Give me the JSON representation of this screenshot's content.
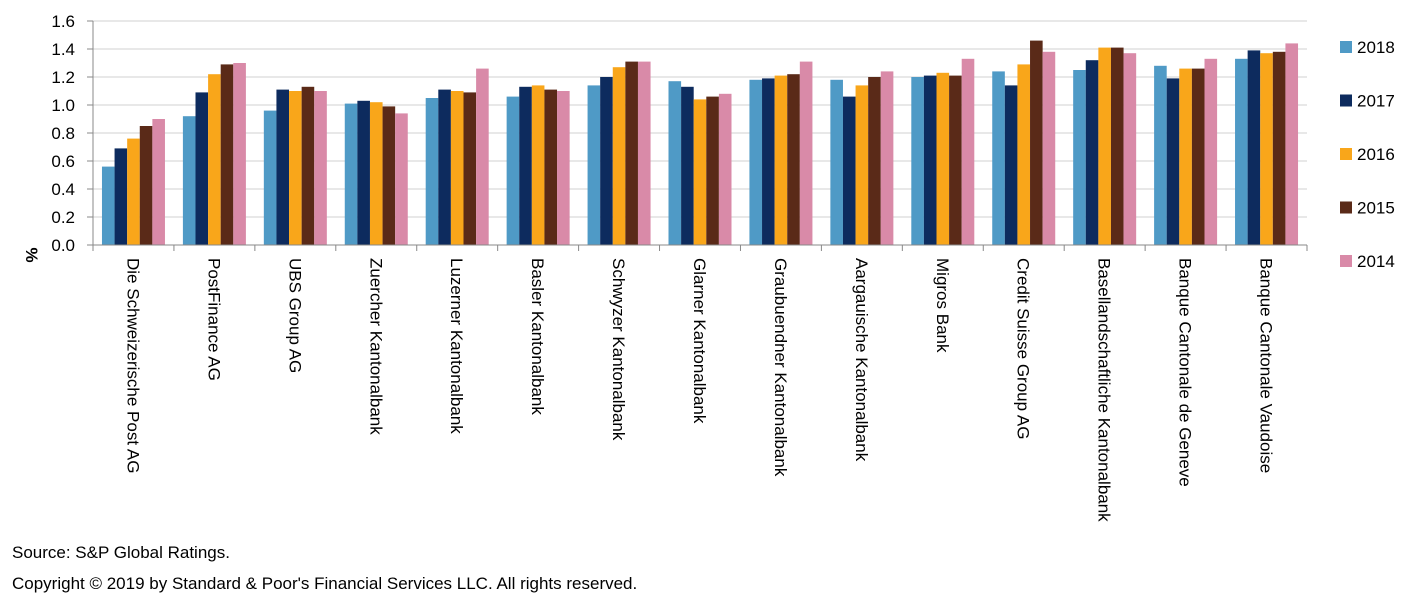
{
  "chart_data": {
    "type": "bar",
    "ylabel": "%",
    "ylim": [
      0,
      1.6
    ],
    "yticks": [
      "0.0",
      "0.2",
      "0.4",
      "0.6",
      "0.8",
      "1.0",
      "1.2",
      "1.4",
      "1.6"
    ],
    "grid": true,
    "legend_position": "right",
    "categories": [
      "Die Schweizerische Post AG",
      "PostFinance AG",
      "UBS Group AG",
      "Zuercher Kantonalbank",
      "Luzerner Kantonalbank",
      "Basler Kantonalbank",
      "Schwyzer Kantonalbank",
      "Glarner Kantonalbank",
      "Graubuendner Kantonalbank",
      "Aargauische Kantonalbank",
      "Migros Bank",
      "Credit Suisse Group AG",
      "Basellandschaftliche Kantonalbank",
      "Banque Cantonale de Geneve",
      "Banque Cantonale Vaudoise"
    ],
    "series": [
      {
        "name": "2018",
        "color": "#4f9ac6",
        "values": [
          0.56,
          0.92,
          0.96,
          1.01,
          1.05,
          1.06,
          1.14,
          1.17,
          1.18,
          1.18,
          1.2,
          1.24,
          1.25,
          1.28,
          1.33
        ]
      },
      {
        "name": "2017",
        "color": "#0d2b5e",
        "values": [
          0.69,
          1.09,
          1.11,
          1.03,
          1.11,
          1.13,
          1.2,
          1.13,
          1.19,
          1.06,
          1.21,
          1.14,
          1.32,
          1.19,
          1.39
        ]
      },
      {
        "name": "2016",
        "color": "#f9a61a",
        "values": [
          0.76,
          1.22,
          1.1,
          1.02,
          1.1,
          1.14,
          1.27,
          1.04,
          1.21,
          1.14,
          1.23,
          1.29,
          1.41,
          1.26,
          1.37
        ]
      },
      {
        "name": "2015",
        "color": "#5a2a18",
        "values": [
          0.85,
          1.29,
          1.13,
          0.99,
          1.09,
          1.11,
          1.31,
          1.06,
          1.22,
          1.2,
          1.21,
          1.46,
          1.41,
          1.26,
          1.38
        ]
      },
      {
        "name": "2014",
        "color": "#d98aa8",
        "values": [
          0.9,
          1.3,
          1.1,
          0.94,
          1.26,
          1.1,
          1.31,
          1.08,
          1.31,
          1.24,
          1.33,
          1.38,
          1.37,
          1.33,
          1.44
        ]
      }
    ]
  },
  "footer": {
    "source": "Source: S&P Global Ratings.",
    "copyright": "Copyright © 2019 by Standard & Poor's Financial Services LLC. All rights reserved."
  }
}
